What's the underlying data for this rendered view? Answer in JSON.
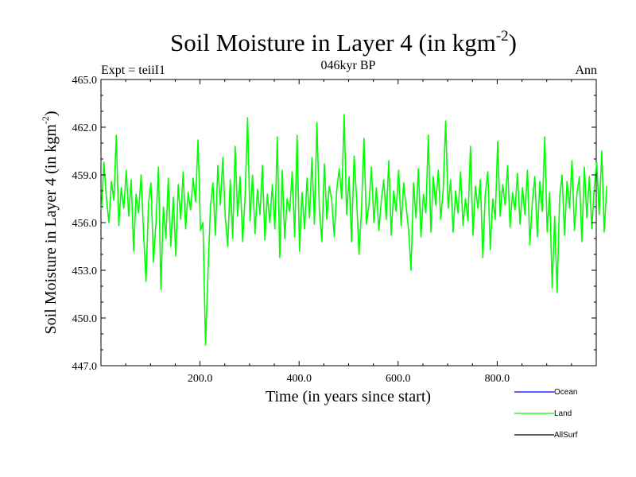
{
  "chart_data": {
    "type": "line",
    "title_main": "Soil Moisture in Layer 4 (in kgm",
    "title_sup": "-2",
    "title_close": ")",
    "subtitle_left": "Expt = teiiI1",
    "subtitle_center": "046kyr BP",
    "subtitle_right": "Ann",
    "xlabel": "Time (in years since start)",
    "ylabel_main": "Soil Moisture in Layer 4 (in kgm",
    "ylabel_sup": "-2",
    "ylabel_close": ")",
    "xlim": [
      0,
      1000
    ],
    "ylim": [
      447.0,
      465.0
    ],
    "x_ticks": [
      200,
      400,
      600,
      800
    ],
    "x_tick_labels": [
      "200.0",
      "400.0",
      "600.0",
      "800.0"
    ],
    "y_ticks": [
      447,
      450,
      453,
      456,
      459,
      462,
      465
    ],
    "y_tick_labels": [
      "447.0",
      "450.0",
      "453.0",
      "456.0",
      "459.0",
      "462.0",
      "465.0"
    ],
    "legend_placement": "bottom-right",
    "legend": [
      {
        "label": "Ocean",
        "color": "#0000ff"
      },
      {
        "label": "Land",
        "color": "#00ff00"
      },
      {
        "label": "AllSurf",
        "color": "#000000"
      }
    ],
    "series": [
      {
        "name": "Land",
        "color": "#00ff00",
        "x_start": 1,
        "x_step": 5,
        "values": [
          456.8,
          459.8,
          457.5,
          456.0,
          458.6,
          457.4,
          461.5,
          455.8,
          458.2,
          456.9,
          459.3,
          456.4,
          458.7,
          454.2,
          457.8,
          456.6,
          459.0,
          455.3,
          452.3,
          457.2,
          458.5,
          453.5,
          456.0,
          459.5,
          451.8,
          457.0,
          455.0,
          458.8,
          454.5,
          457.6,
          453.9,
          458.4,
          456.2,
          459.2,
          455.6,
          457.9,
          456.8,
          458.8,
          457.3,
          461.2,
          455.5,
          456.0,
          448.3,
          452.8,
          457.0,
          458.5,
          455.2,
          459.6,
          457.1,
          460.1,
          456.3,
          454.5,
          458.7,
          455.0,
          460.8,
          456.4,
          458.9,
          454.8,
          457.6,
          462.6,
          456.1,
          459.0,
          455.3,
          458.1,
          456.5,
          459.6,
          454.9,
          457.8,
          456.0,
          458.4,
          455.6,
          461.4,
          453.8,
          459.3,
          455.0,
          457.5,
          456.7,
          459.2,
          455.1,
          461.5,
          454.2,
          457.9,
          455.6,
          458.8,
          456.3,
          460.1,
          455.9,
          462.3,
          456.8,
          454.8,
          459.7,
          456.2,
          458.3,
          457.4,
          455.1,
          458.0,
          459.4,
          457.5,
          462.8,
          456.5,
          458.9,
          454.8,
          460.2,
          457.6,
          454.0,
          456.8,
          461.3,
          455.9,
          457.1,
          459.5,
          456.0,
          458.2,
          455.5,
          457.4,
          458.7,
          456.2,
          459.9,
          455.2,
          458.0,
          456.7,
          459.3,
          455.8,
          458.5,
          457.0,
          455.6,
          453.0,
          458.5,
          456.3,
          459.4,
          455.1,
          457.8,
          456.6,
          461.5,
          455.4,
          458.9,
          457.1,
          459.3,
          456.2,
          458.1,
          462.4,
          456.9,
          458.7,
          455.4,
          458.0,
          456.6,
          459.2,
          455.8,
          457.5,
          456.1,
          460.8,
          455.2,
          458.3,
          456.9,
          458.7,
          453.8,
          457.8,
          459.2,
          454.3,
          457.5,
          456.2,
          461.1,
          456.4,
          458.4,
          457.1,
          459.6,
          455.7,
          457.9,
          456.8,
          459.1,
          455.9,
          458.2,
          456.5,
          459.3,
          454.6,
          457.3,
          458.9,
          455.1,
          458.6,
          456.7,
          461.4,
          455.4,
          457.9,
          451.9,
          456.4,
          451.6,
          457.6,
          459.0,
          455.2,
          458.6,
          456.9,
          459.9,
          455.5,
          457.8,
          458.9,
          454.8,
          459.5,
          456.3,
          458.9,
          455.6,
          458.2,
          459.8,
          456.5,
          460.5,
          455.4,
          458.3
        ]
      }
    ]
  }
}
